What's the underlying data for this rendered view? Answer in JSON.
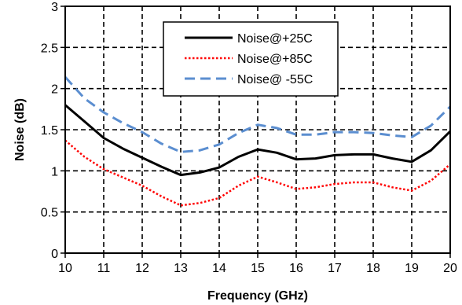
{
  "chart_data": {
    "type": "line",
    "xlabel": "Frequency (GHz)",
    "ylabel": "Noise (dB)",
    "xlim": [
      10,
      20
    ],
    "ylim": [
      0,
      3
    ],
    "xticks": [
      10,
      11,
      12,
      13,
      14,
      15,
      16,
      17,
      18,
      19,
      20
    ],
    "yticks": [
      0,
      0.5,
      1,
      1.5,
      2,
      2.5,
      3
    ],
    "ytick_labels": [
      "0",
      "0.5",
      "1",
      "1.5",
      "2",
      "2.5",
      "3"
    ],
    "grid": true,
    "legend_position": "top-center",
    "series": [
      {
        "name": "Noise@+25C",
        "color": "#000000",
        "style": "solid",
        "x": [
          10,
          10.5,
          11,
          11.5,
          12,
          12.5,
          13,
          13.5,
          14,
          14.5,
          15,
          15.5,
          16,
          16.5,
          17,
          17.5,
          18,
          18.5,
          19,
          19.5,
          20
        ],
        "y": [
          1.8,
          1.6,
          1.4,
          1.27,
          1.16,
          1.05,
          0.95,
          0.98,
          1.04,
          1.17,
          1.26,
          1.22,
          1.14,
          1.15,
          1.19,
          1.2,
          1.2,
          1.15,
          1.11,
          1.25,
          1.48
        ]
      },
      {
        "name": "Noise@+85C",
        "color": "#ff0000",
        "style": "dotted",
        "x": [
          10,
          10.5,
          11,
          11.5,
          12,
          12.5,
          13,
          13.5,
          14,
          14.5,
          15,
          15.5,
          16,
          16.5,
          17,
          17.5,
          18,
          18.5,
          19,
          19.5,
          20
        ],
        "y": [
          1.37,
          1.17,
          1.02,
          0.92,
          0.82,
          0.69,
          0.58,
          0.61,
          0.67,
          0.82,
          0.93,
          0.86,
          0.78,
          0.8,
          0.84,
          0.86,
          0.86,
          0.8,
          0.76,
          0.88,
          1.08
        ]
      },
      {
        "name": "Noise@ -55C",
        "color": "#5b8ed0",
        "style": "dashed",
        "x": [
          10,
          10.5,
          11,
          11.5,
          12,
          12.5,
          13,
          13.5,
          14,
          14.5,
          15,
          15.5,
          16,
          16.5,
          17,
          17.5,
          18,
          18.5,
          19,
          19.5,
          20
        ],
        "y": [
          2.14,
          1.88,
          1.71,
          1.58,
          1.47,
          1.33,
          1.23,
          1.25,
          1.32,
          1.46,
          1.56,
          1.52,
          1.44,
          1.44,
          1.47,
          1.47,
          1.46,
          1.43,
          1.41,
          1.55,
          1.78
        ]
      }
    ]
  }
}
